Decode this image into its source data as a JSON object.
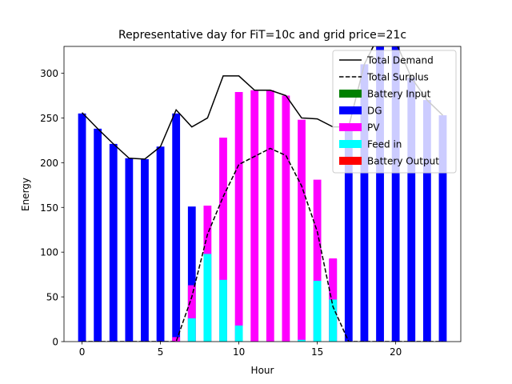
{
  "chart_data": {
    "type": "bar",
    "title": "Representative day for FiT=10c and grid price=21c",
    "xlabel": "Hour",
    "ylabel": "Energy",
    "xlim": [
      -1.15,
      24.15
    ],
    "ylim": [
      0,
      330
    ],
    "xticks": [
      0,
      5,
      10,
      15,
      20
    ],
    "yticks": [
      0,
      50,
      100,
      150,
      200,
      250,
      300
    ],
    "legend_position": "top-right",
    "x": [
      0,
      1,
      2,
      3,
      4,
      5,
      6,
      7,
      8,
      9,
      10,
      11,
      12,
      13,
      14,
      15,
      16,
      17,
      18,
      19,
      20,
      21,
      22,
      23
    ],
    "series": [
      {
        "name": "Battery Input",
        "kind": "bar",
        "color": "#008000",
        "values": [
          0,
          0,
          0,
          0,
          0,
          0,
          0,
          0,
          0,
          0,
          0,
          0,
          0,
          0,
          0,
          0,
          0,
          0,
          0,
          0,
          0,
          0,
          0,
          0
        ]
      },
      {
        "name": "DG",
        "kind": "bar",
        "color": "#0000ff",
        "values": [
          255,
          238,
          221,
          205,
          204,
          218,
          255,
          151,
          0,
          0,
          0,
          0,
          0,
          0,
          0,
          0,
          92,
          240,
          310,
          345,
          335,
          295,
          270,
          253
        ]
      },
      {
        "name": "PV",
        "kind": "bar",
        "color": "#ff00ff",
        "values": [
          0,
          0,
          0,
          0,
          0,
          0,
          5,
          63,
          152,
          228,
          279,
          281,
          281,
          275,
          248,
          181,
          93,
          0,
          0,
          0,
          0,
          0,
          0,
          0
        ]
      },
      {
        "name": "Feed in",
        "kind": "bar",
        "color": "#00ffff",
        "values": [
          0,
          0,
          0,
          0,
          0,
          0,
          0,
          26,
          98,
          69,
          18,
          0,
          0,
          0,
          2,
          68,
          47,
          0,
          0,
          0,
          0,
          0,
          0,
          0
        ]
      },
      {
        "name": "Battery Output",
        "kind": "bar",
        "color": "#ff0000",
        "values": [
          0,
          0,
          0,
          0,
          0,
          0,
          0,
          0,
          0,
          0,
          0,
          0,
          0,
          0,
          0,
          0,
          0,
          0,
          0,
          0,
          0,
          0,
          0,
          0
        ]
      },
      {
        "name": "Total Demand",
        "kind": "line",
        "color": "#000000",
        "dash": "solid",
        "values": [
          256,
          238,
          221,
          205,
          204,
          218,
          259,
          240,
          250,
          297,
          297,
          281,
          281,
          275,
          250,
          249,
          240,
          240,
          310,
          345,
          335,
          295,
          270,
          253
        ]
      },
      {
        "name": "Total Surplus",
        "kind": "line",
        "color": "#000000",
        "dash": "dashed",
        "values": [
          0,
          0,
          0,
          0,
          0,
          0,
          0,
          50,
          120,
          162,
          198,
          207,
          216,
          208,
          174,
          123,
          39,
          0,
          0,
          0,
          0,
          0,
          0,
          0
        ]
      }
    ]
  }
}
